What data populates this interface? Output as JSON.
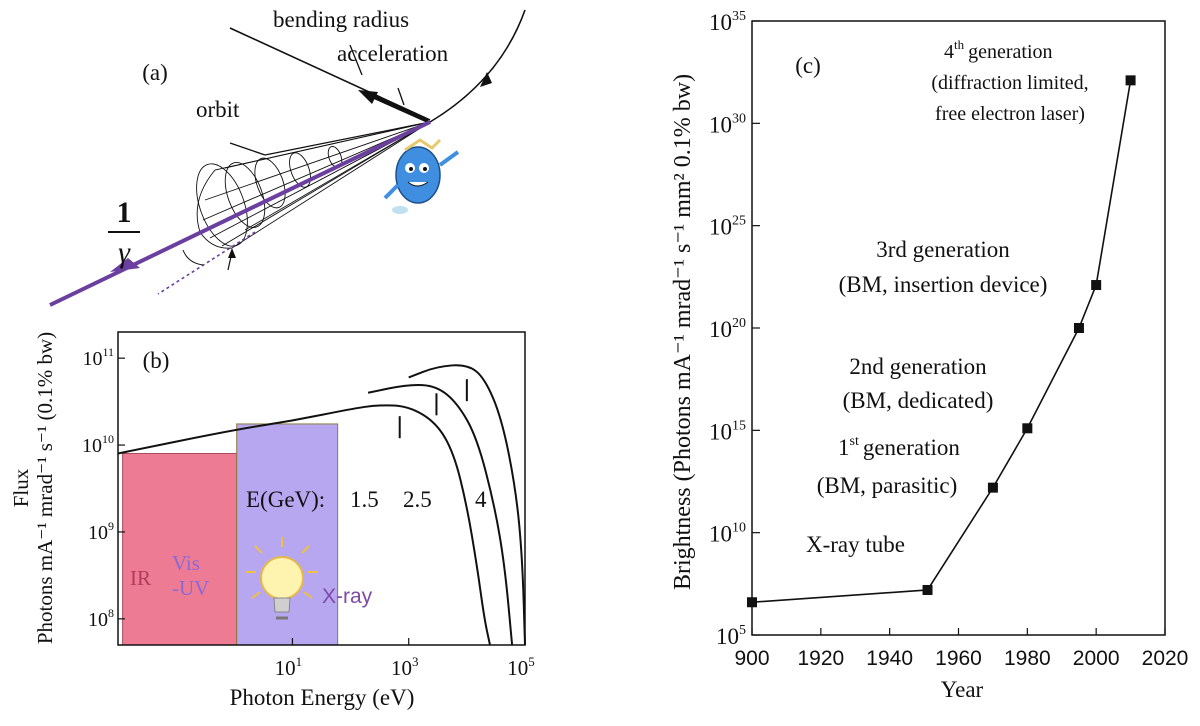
{
  "panel_a": {
    "label": "(a)",
    "bending_radius_label": "bending radius",
    "acceleration_label": "acceleration",
    "orbit_label": "orbit",
    "cone_angle_numerator": "1",
    "cone_angle_denominator": "γ"
  },
  "panel_b": {
    "label": "(b)",
    "y_axis_title": "Flux",
    "y_axis_units": "Photons mA⁻¹ mrad⁻¹ s⁻¹ (0.1% bw)",
    "x_axis_title": "Photon Energy (eV)",
    "energy_prefix": "E(GeV):",
    "region_ir": "IR",
    "region_vis_line1": "Vis",
    "region_vis_line2": "-UV",
    "region_xray": "X-ray",
    "colors": {
      "ir": "#ec7b93",
      "vis_uv": "#b7a7f0",
      "xray_label": "#7e4aa8",
      "ir_label": "#b23a5c",
      "vis_label": "#8b68d8"
    },
    "chart_data": {
      "type": "line",
      "x_scale": "log",
      "y_scale": "log",
      "xlim": [
        0.01,
        100000
      ],
      "ylim": [
        50000000,
        200000000000
      ],
      "x_ticks": [
        {
          "value": 10,
          "base": "10",
          "exp": "1"
        },
        {
          "value": 1000,
          "base": "10",
          "exp": "3"
        },
        {
          "value": 100000,
          "base": "10",
          "exp": "5"
        }
      ],
      "y_ticks": [
        {
          "value": 100000000,
          "base": "10",
          "exp": "8"
        },
        {
          "value": 1000000000,
          "base": "10",
          "exp": "9"
        },
        {
          "value": 10000000000,
          "base": "10",
          "exp": "10"
        },
        {
          "value": 100000000000,
          "base": "10",
          "exp": "11"
        }
      ],
      "series": [
        {
          "label": "1.5",
          "critical_energy_eV": 700,
          "points": [
            [
              0.01,
              8000000000.0
            ],
            [
              1,
              15000000000.0
            ],
            [
              10,
              19000000000.0
            ],
            [
              100,
              26000000000.0
            ],
            [
              300,
              29000000000.0
            ],
            [
              1000,
              28000000000.0
            ],
            [
              3000,
              18000000000.0
            ],
            [
              6000,
              8000000000.0
            ],
            [
              10000,
              2000000000.0
            ],
            [
              15000,
              400000000.0
            ],
            [
              20000,
              100000000.0
            ],
            [
              25000,
              50000000.0
            ]
          ]
        },
        {
          "label": "2.5",
          "critical_energy_eV": 3000,
          "points": [
            [
              200,
              40000000000.0
            ],
            [
              1000,
              50000000000.0
            ],
            [
              3000,
              48000000000.0
            ],
            [
              7000,
              30000000000.0
            ],
            [
              15000,
              12000000000.0
            ],
            [
              30000,
              2000000000.0
            ],
            [
              45000,
              400000000.0
            ],
            [
              60000,
              50000000.0
            ]
          ]
        },
        {
          "label": "4",
          "critical_energy_eV": 10000,
          "points": [
            [
              1000,
              60000000000.0
            ],
            [
              3000,
              80000000000.0
            ],
            [
              10000,
              85000000000.0
            ],
            [
              20000,
              60000000000.0
            ],
            [
              40000,
              20000000000.0
            ],
            [
              70000,
              3000000000.0
            ],
            [
              90000,
              500000000.0
            ],
            [
              110000,
              50000000.0
            ]
          ]
        }
      ]
    }
  },
  "panel_c": {
    "label": "(c)",
    "y_axis_title": "Brightness (Photons mA⁻¹ mrad⁻¹ s⁻¹ mm² 0.1% bw)",
    "x_axis_title": "Year",
    "annotations": {
      "xray_tube": "X-ray tube",
      "gen1_num": "1",
      "gen1_sup": "st",
      "gen1_title": "generation",
      "gen1_sub": "(BM, parasitic)",
      "gen2_title": "2nd generation",
      "gen2_sub": "(BM, dedicated)",
      "gen3_title": "3rd generation",
      "gen3_sub": "(BM, insertion device)",
      "gen4_num": "4",
      "gen4_sup": "th",
      "gen4_title": "generation",
      "gen4_sub1": "(diffraction limited,",
      "gen4_sub2": "free electron laser)"
    },
    "chart_data": {
      "type": "line",
      "y_scale": "log",
      "xlim": [
        1900,
        2020
      ],
      "ylim_exp": [
        5,
        35
      ],
      "x_ticks": [
        "900",
        "1920",
        "1940",
        "1960",
        "1980",
        "2000",
        "2020"
      ],
      "y_ticks": [
        {
          "base": "10",
          "exp": "5",
          "value_exp": 5
        },
        {
          "base": "10",
          "exp": "10",
          "value_exp": 10
        },
        {
          "base": "10",
          "exp": "15",
          "value_exp": 15
        },
        {
          "base": "10",
          "exp": "20",
          "value_exp": 20
        },
        {
          "base": "10",
          "exp": "25",
          "value_exp": 25
        },
        {
          "base": "10",
          "exp": "30",
          "value_exp": 30
        },
        {
          "base": "10",
          "exp": "35",
          "value_exp": 35
        }
      ],
      "points": [
        {
          "year": 1900,
          "log10_brightness": 6.6
        },
        {
          "year": 1951,
          "log10_brightness": 7.2
        },
        {
          "year": 1970,
          "log10_brightness": 12.2
        },
        {
          "year": 1980,
          "log10_brightness": 15.1
        },
        {
          "year": 1995,
          "log10_brightness": 20.0
        },
        {
          "year": 2000,
          "log10_brightness": 22.1
        },
        {
          "year": 2010,
          "log10_brightness": 32.1
        }
      ]
    }
  }
}
